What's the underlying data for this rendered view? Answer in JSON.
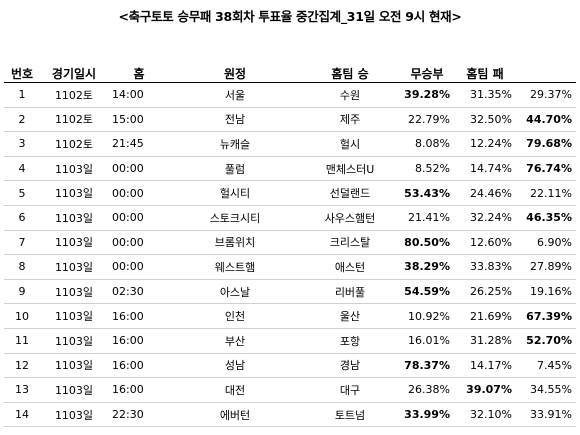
{
  "title": "<축구토토 승무패 38회차 투표율 중간집계_31일 오전 9시 현재>",
  "headers": {
    "no": "번호",
    "date": "경기일시",
    "time": "홈",
    "home": "원정",
    "away": "홈팀 승",
    "draw": "무승부",
    "awaywin": "홈팀 패",
    "last": ""
  },
  "rows": [
    {
      "no": "1",
      "date": "1102토",
      "time": "14:00",
      "home": "서울",
      "away": "수원",
      "p1": "39.28%",
      "p2": "31.35%",
      "p3": "29.37%",
      "max": 1
    },
    {
      "no": "2",
      "date": "1102토",
      "time": "15:00",
      "home": "전남",
      "away": "제주",
      "p1": "22.79%",
      "p2": "32.50%",
      "p3": "44.70%",
      "max": 3
    },
    {
      "no": "3",
      "date": "1102토",
      "time": "21:45",
      "home": "뉴캐슬",
      "away": "헐시",
      "p1": "8.08%",
      "p2": "12.24%",
      "p3": "79.68%",
      "max": 3
    },
    {
      "no": "4",
      "date": "1103일",
      "time": "00:00",
      "home": "풀럼",
      "away": "맨체스터U",
      "p1": "8.52%",
      "p2": "14.74%",
      "p3": "76.74%",
      "max": 3
    },
    {
      "no": "5",
      "date": "1103일",
      "time": "00:00",
      "home": "헐시티",
      "away": "선덜랜드",
      "p1": "53.43%",
      "p2": "24.46%",
      "p3": "22.11%",
      "max": 1
    },
    {
      "no": "6",
      "date": "1103일",
      "time": "00:00",
      "home": "스토크시티",
      "away": "사우스햄턴",
      "p1": "21.41%",
      "p2": "32.24%",
      "p3": "46.35%",
      "max": 3
    },
    {
      "no": "7",
      "date": "1103일",
      "time": "00:00",
      "home": "브롬위치",
      "away": "크리스탈",
      "p1": "80.50%",
      "p2": "12.60%",
      "p3": "6.90%",
      "max": 1
    },
    {
      "no": "8",
      "date": "1103일",
      "time": "00:00",
      "home": "웨스트햄",
      "away": "애스턴",
      "p1": "38.29%",
      "p2": "33.83%",
      "p3": "27.89%",
      "max": 1
    },
    {
      "no": "9",
      "date": "1103일",
      "time": "02:30",
      "home": "아스날",
      "away": "리버풀",
      "p1": "54.59%",
      "p2": "26.25%",
      "p3": "19.16%",
      "max": 1
    },
    {
      "no": "10",
      "date": "1103일",
      "time": "16:00",
      "home": "인천",
      "away": "울산",
      "p1": "10.92%",
      "p2": "21.69%",
      "p3": "67.39%",
      "max": 3
    },
    {
      "no": "11",
      "date": "1103일",
      "time": "16:00",
      "home": "부산",
      "away": "포항",
      "p1": "16.01%",
      "p2": "31.28%",
      "p3": "52.70%",
      "max": 3
    },
    {
      "no": "12",
      "date": "1103일",
      "time": "16:00",
      "home": "성남",
      "away": "경남",
      "p1": "78.37%",
      "p2": "14.17%",
      "p3": "7.45%",
      "max": 1
    },
    {
      "no": "13",
      "date": "1103일",
      "time": "16:00",
      "home": "대전",
      "away": "대구",
      "p1": "26.38%",
      "p2": "39.07%",
      "p3": "34.55%",
      "max": 2
    },
    {
      "no": "14",
      "date": "1103일",
      "time": "22:30",
      "home": "에버턴",
      "away": "토트넘",
      "p1": "33.99%",
      "p2": "32.10%",
      "p3": "33.91%",
      "max": 1
    }
  ]
}
